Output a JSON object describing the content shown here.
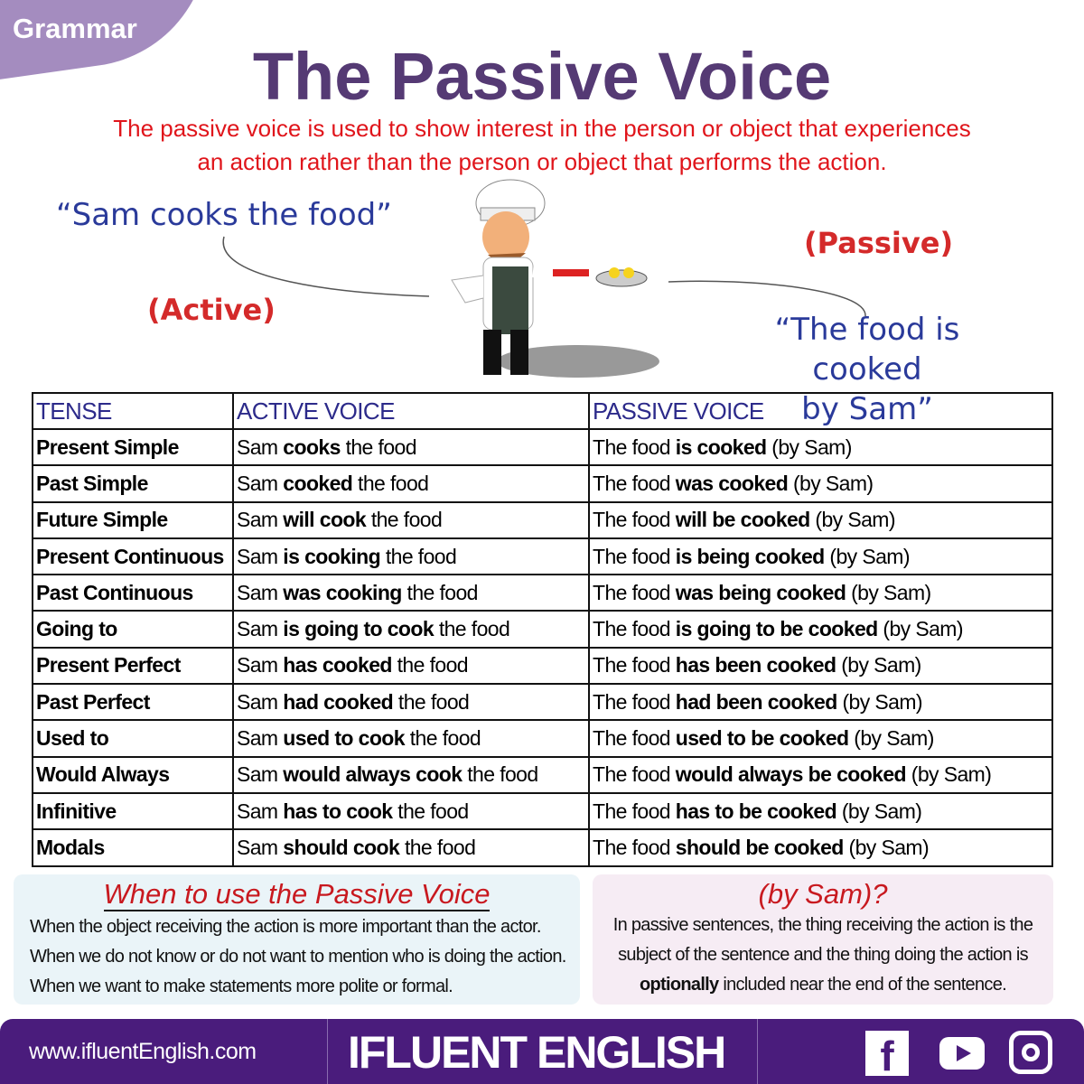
{
  "badge": "Grammar",
  "title": "The Passive Voice",
  "subtitle": [
    "The passive voice is used to show interest in the person or object that experiences",
    "an action rather than the person or object that performs the action."
  ],
  "illustration": {
    "active_quote": "“Sam cooks the food”",
    "active_label": "(Active)",
    "passive_label": "(Passive)",
    "passive_quote": [
      "“The food is cooked",
      "by Sam”"
    ]
  },
  "table": {
    "headers": [
      "TENSE",
      "ACTIVE VOICE",
      "PASSIVE VOICE"
    ],
    "rows": [
      {
        "tense": "Present Simple",
        "active": [
          "Sam ",
          "cooks",
          " the food"
        ],
        "passive": [
          "The food ",
          "is cooked",
          " (by Sam)"
        ]
      },
      {
        "tense": "Past Simple",
        "active": [
          "Sam ",
          "cooked",
          " the food"
        ],
        "passive": [
          "The food ",
          "was cooked",
          " (by Sam)"
        ]
      },
      {
        "tense": "Future Simple",
        "active": [
          "Sam ",
          "will cook",
          " the food"
        ],
        "passive": [
          "The food ",
          "will be cooked",
          " (by Sam)"
        ]
      },
      {
        "tense": "Present Continuous",
        "active": [
          "Sam ",
          "is cooking",
          " the food"
        ],
        "passive": [
          "The food ",
          "is being cooked",
          " (by Sam)"
        ]
      },
      {
        "tense": "Past Continuous",
        "active": [
          "Sam ",
          "was cooking",
          " the food"
        ],
        "passive": [
          "The food ",
          "was being cooked",
          " (by Sam)"
        ]
      },
      {
        "tense": "Going to",
        "active": [
          "Sam ",
          "is going to cook",
          " the food"
        ],
        "passive": [
          "The food ",
          "is going to be cooked",
          " (by Sam)"
        ]
      },
      {
        "tense": "Present Perfect",
        "active": [
          "Sam ",
          "has cooked",
          " the food"
        ],
        "passive": [
          "The food ",
          "has been cooked",
          " (by Sam)"
        ]
      },
      {
        "tense": "Past Perfect",
        "active": [
          "Sam ",
          "had cooked",
          " the food"
        ],
        "passive": [
          "The food ",
          "had been cooked",
          " (by Sam)"
        ]
      },
      {
        "tense": "Used to",
        "active": [
          "Sam ",
          "used to cook",
          " the food"
        ],
        "passive": [
          "The food ",
          "used to be cooked",
          " (by Sam)"
        ]
      },
      {
        "tense": "Would Always",
        "active": [
          "Sam ",
          "would always cook",
          " the food"
        ],
        "passive": [
          "The food ",
          "would always be cooked",
          " (by Sam)"
        ]
      },
      {
        "tense": "Infinitive",
        "active": [
          "Sam ",
          "has to cook",
          " the food"
        ],
        "passive": [
          "The food ",
          "has to be cooked",
          " (by Sam)"
        ]
      },
      {
        "tense": "Modals",
        "active": [
          "Sam ",
          "should cook",
          " the food"
        ],
        "passive": [
          "The food ",
          "should be cooked",
          " (by Sam)"
        ]
      }
    ]
  },
  "when_box": {
    "title": "When to use the Passive Voice",
    "lines": [
      "When the object receiving the action is more important than the actor.",
      "When we do not know or do not want to mention who is doing the action.",
      "When we want to make statements more polite or formal."
    ]
  },
  "by_box": {
    "title": "(by Sam)?",
    "lines": [
      "In passive sentences, the thing receiving the action is the",
      "subject of the sentence and the thing doing the action is"
    ],
    "bold": "optionally",
    "rest": " included near the end of the sentence."
  },
  "footer": {
    "url": "www.ifluentEnglish.com",
    "brand": "IFLUENT ENGLISH",
    "social": [
      "facebook-icon",
      "youtube-icon",
      "instagram-icon"
    ]
  },
  "colors": {
    "title": "#553a74",
    "accent_red": "#e0151b",
    "quote_blue": "#2a3a9a",
    "footer": "#4a1c7c",
    "badge": "#a48cbf"
  }
}
